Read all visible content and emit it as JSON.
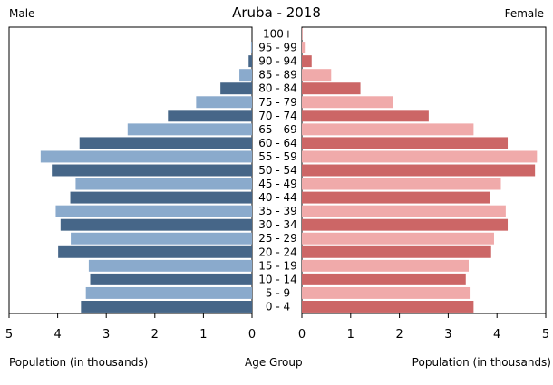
{
  "chart_data": {
    "type": "bar",
    "title": "Aruba - 2018",
    "left_side_label": "Male",
    "right_side_label": "Female",
    "xlabel_left": "Population (in thousands)",
    "xlabel_center": "Age Group",
    "xlabel_right": "Population (in thousands)",
    "xlim": [
      0,
      5
    ],
    "x_ticks": [
      0,
      1,
      2,
      3,
      4,
      5
    ],
    "categories": [
      "100+",
      "95 - 99",
      "90 - 94",
      "85 - 89",
      "80 - 84",
      "75 - 79",
      "70 - 74",
      "65 - 69",
      "60 - 64",
      "55 - 59",
      "50 - 54",
      "45 - 49",
      "40 - 44",
      "35 - 39",
      "30 - 34",
      "25 - 29",
      "20 - 24",
      "15 - 19",
      "10 - 14",
      "5 - 9",
      "0 - 4"
    ],
    "series": [
      {
        "name": "Male",
        "values": [
          0.0,
          0.02,
          0.07,
          0.26,
          0.65,
          1.15,
          1.73,
          2.56,
          3.55,
          4.35,
          4.12,
          3.63,
          3.74,
          4.04,
          3.94,
          3.73,
          3.99,
          3.36,
          3.33,
          3.42,
          3.52
        ]
      },
      {
        "name": "Female",
        "values": [
          0.01,
          0.06,
          0.2,
          0.6,
          1.2,
          1.86,
          2.6,
          3.52,
          4.22,
          4.82,
          4.78,
          4.08,
          3.86,
          4.18,
          4.22,
          3.94,
          3.88,
          3.42,
          3.36,
          3.44,
          3.52
        ]
      }
    ],
    "colors": {
      "male_dark": "#466688",
      "male_light": "#8aaacc",
      "female_dark": "#cc6666",
      "female_light": "#f0aaaa"
    }
  }
}
